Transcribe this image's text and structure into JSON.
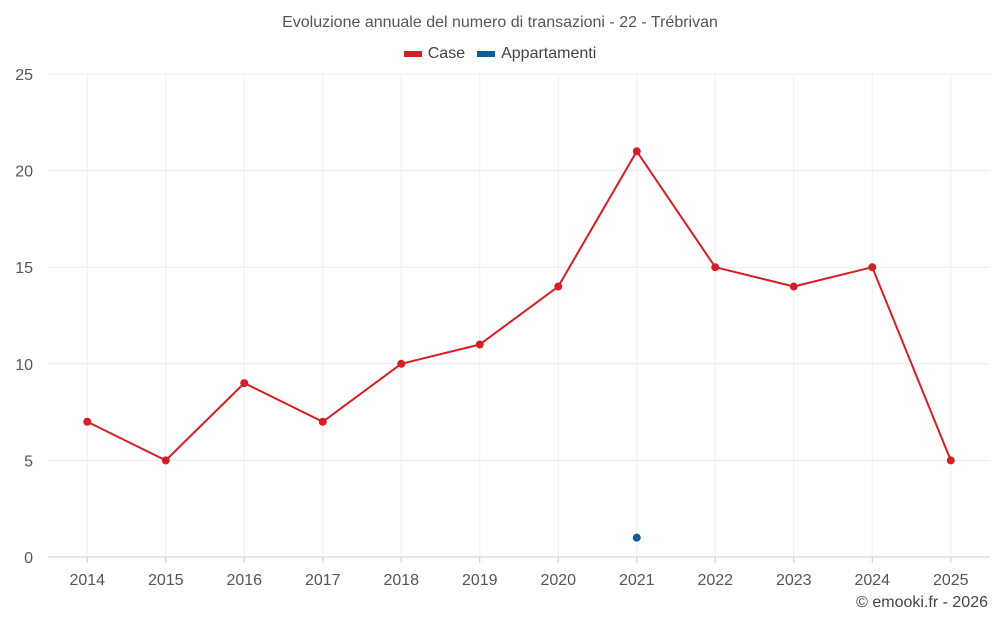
{
  "chart_data": {
    "type": "line",
    "title": "Evoluzione annuale del numero di transazioni - 22 - Trébrivan",
    "categories": [
      "2014",
      "2015",
      "2016",
      "2017",
      "2018",
      "2019",
      "2020",
      "2021",
      "2022",
      "2023",
      "2024",
      "2025"
    ],
    "series": [
      {
        "name": "Case",
        "color": "#d32027",
        "values": [
          7,
          5,
          9,
          7,
          10,
          11,
          14,
          21,
          15,
          14,
          15,
          5
        ]
      },
      {
        "name": "Appartamenti",
        "color": "#0b5e9c",
        "values": [
          null,
          null,
          null,
          null,
          null,
          null,
          null,
          1,
          null,
          null,
          null,
          null
        ]
      }
    ],
    "yticks": [
      0,
      5,
      10,
      15,
      20,
      25
    ],
    "ylim": [
      0,
      25
    ],
    "xlabel": "",
    "ylabel": "",
    "grid": true,
    "legend_position": "top-center"
  },
  "credit": "© emooki.fr - 2026"
}
